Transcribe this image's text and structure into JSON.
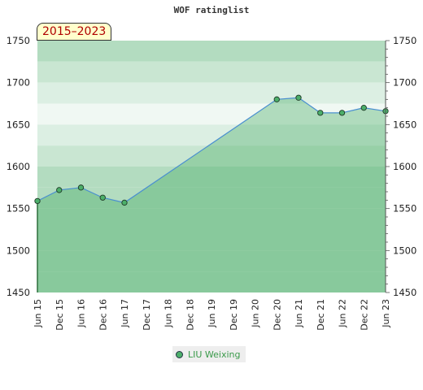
{
  "chart_data": {
    "type": "area",
    "title": "WOF ratinglist",
    "period_label": "2015–2023",
    "ylim": [
      1450,
      1750
    ],
    "yticks": [
      1450,
      1500,
      1550,
      1600,
      1650,
      1700,
      1750
    ],
    "xticks": [
      "Jun 15",
      "Dec 15",
      "Jun 16",
      "Dec 16",
      "Jun 17",
      "Dec 17",
      "Jun 18",
      "Dec 18",
      "Jun 19",
      "Dec 19",
      "Jun 20",
      "Dec 20",
      "Jun 21",
      "Dec 21",
      "Jun 22",
      "Dec 22",
      "Jun 23"
    ],
    "series": [
      {
        "name": "LIU Weixing",
        "color": "#4a8fd0",
        "marker_color": "#4caf6a",
        "points": [
          {
            "x": "Jun 15",
            "y": 1559
          },
          {
            "x": "Dec 15",
            "y": 1572
          },
          {
            "x": "Jun 16",
            "y": 1575
          },
          {
            "x": "Dec 16",
            "y": 1563
          },
          {
            "x": "Jun 17",
            "y": 1557
          },
          {
            "x": "Dec 20",
            "y": 1680
          },
          {
            "x": "Jun 21",
            "y": 1682
          },
          {
            "x": "Dec 21",
            "y": 1664
          },
          {
            "x": "Jun 22",
            "y": 1664
          },
          {
            "x": "Dec 22",
            "y": 1670
          },
          {
            "x": "Jun 23",
            "y": 1666
          }
        ]
      }
    ],
    "legend_position": "bottom-center",
    "grid": true
  }
}
